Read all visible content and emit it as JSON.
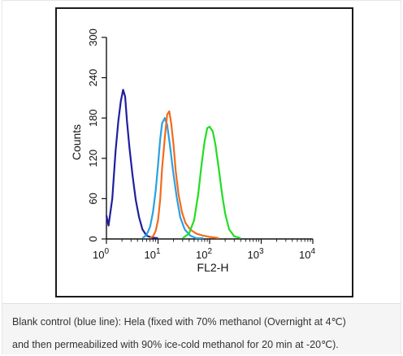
{
  "chart_data": {
    "type": "line",
    "xlabel": "FL2-H",
    "ylabel": "Counts",
    "x_scale": "log",
    "xlim": [
      1,
      10000
    ],
    "ylim": [
      0,
      300
    ],
    "x_ticks": [
      {
        "value": 1,
        "base": "10",
        "exp": "0"
      },
      {
        "value": 10,
        "base": "10",
        "exp": "1"
      },
      {
        "value": 100,
        "base": "10",
        "exp": "2"
      },
      {
        "value": 1000,
        "base": "10",
        "exp": "3"
      },
      {
        "value": 10000,
        "base": "10",
        "exp": "4"
      }
    ],
    "y_ticks": [
      "0",
      "60",
      "120",
      "180",
      "240",
      "300"
    ],
    "grid": false,
    "series": [
      {
        "color": "#1f1f9e",
        "x": [
          1,
          1.1,
          1.3,
          1.5,
          1.7,
          1.9,
          2.1,
          2.3,
          2.5,
          2.8,
          3.2,
          3.7,
          4.3,
          5,
          6,
          7.5,
          10
        ],
        "y": [
          35,
          20,
          60,
          130,
          175,
          205,
          222,
          212,
          175,
          135,
          95,
          58,
          32,
          14,
          5,
          2,
          0
        ]
      },
      {
        "color": "#2aa1e0",
        "x": [
          5,
          6,
          7,
          8,
          9,
          10,
          11,
          12,
          13.5,
          15,
          17,
          19.5,
          23,
          27,
          33,
          42,
          55,
          75
        ],
        "y": [
          0,
          6,
          18,
          40,
          72,
          110,
          148,
          172,
          180,
          170,
          140,
          102,
          62,
          32,
          14,
          5,
          1,
          0
        ]
      },
      {
        "color": "#f26b1d",
        "x": [
          7,
          8,
          9,
          10,
          11,
          12,
          13.5,
          15,
          16.5,
          18,
          20,
          22,
          25,
          29,
          34,
          42,
          55,
          75,
          100,
          150
        ],
        "y": [
          0,
          4,
          12,
          28,
          58,
          105,
          150,
          185,
          190,
          172,
          140,
          102,
          66,
          40,
          24,
          14,
          8,
          5,
          3,
          0
        ]
      },
      {
        "color": "#22dd22",
        "x": [
          30,
          40,
          50,
          60,
          70,
          80,
          90,
          100,
          115,
          130,
          150,
          175,
          200,
          240,
          300,
          400
        ],
        "y": [
          0,
          8,
          28,
          66,
          112,
          145,
          165,
          167,
          160,
          140,
          105,
          66,
          38,
          14,
          4,
          0
        ]
      }
    ]
  },
  "caption": {
    "line1": "Blank control (blue line): Hela (fixed with 70% methanol (Overnight at 4℃)",
    "line2": "and then permeabilized with 90% ice-cold methanol for 20 min at -20℃)."
  }
}
